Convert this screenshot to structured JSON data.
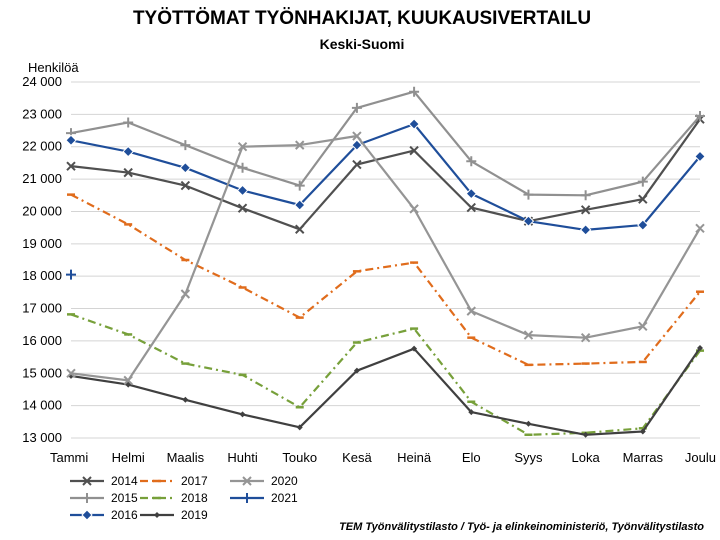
{
  "chart_data": {
    "type": "line",
    "title": "TYÖTTÖMAT TYÖNHAKIJAT, KUUKAUSIVERTAILU",
    "subtitle": "Keski-Suomi",
    "ylabel": "Henkilöä",
    "xlabel": "",
    "ylim": [
      13000,
      24000
    ],
    "yticks": [
      13000,
      14000,
      15000,
      16000,
      17000,
      18000,
      19000,
      20000,
      21000,
      22000,
      23000,
      24000
    ],
    "ytick_labels": [
      "13 000",
      "14 000",
      "15 000",
      "16 000",
      "17 000",
      "18 000",
      "19 000",
      "20 000",
      "21 000",
      "22 000",
      "23 000",
      "24 000"
    ],
    "categories": [
      "Tammi",
      "Helmi",
      "Maalis",
      "Huhti",
      "Touko",
      "Kesä",
      "Heinä",
      "Elo",
      "Syys",
      "Loka",
      "Marras",
      "Joulu"
    ],
    "grid": "horizontal",
    "legend_position": "bottom-left",
    "source": "TEM Työnvälitystilasto / Työ- ja elinkeinoministeriö, Työnvälitystilasto",
    "series": [
      {
        "name": "2014",
        "color": "#505050",
        "dash": "solid",
        "marker": "x",
        "values": [
          21400,
          21200,
          20800,
          20100,
          19450,
          21450,
          21880,
          20120,
          19700,
          20050,
          20380,
          22850
        ]
      },
      {
        "name": "2015",
        "color": "#909090",
        "dash": "solid",
        "marker": "plus",
        "values": [
          22420,
          22750,
          22050,
          21350,
          20800,
          23200,
          23700,
          21550,
          20520,
          20500,
          20920,
          22950
        ]
      },
      {
        "name": "2016",
        "color": "#1f4e9a",
        "dash": "solid",
        "marker": "diamond",
        "values": [
          22200,
          21850,
          21350,
          20650,
          20200,
          22050,
          22700,
          20550,
          19700,
          19430,
          19580,
          21700
        ]
      },
      {
        "name": "2017",
        "color": "#e06c1c",
        "dash": "dashdot",
        "marker": "dash",
        "values": [
          20520,
          19600,
          18500,
          17650,
          16720,
          18150,
          18420,
          16100,
          15260,
          15300,
          15350,
          17520
        ]
      },
      {
        "name": "2018",
        "color": "#77a03a",
        "dash": "dashdot",
        "marker": "dash",
        "values": [
          16820,
          16200,
          15300,
          14950,
          13950,
          15950,
          16380,
          14120,
          13100,
          13160,
          13300,
          15700
        ]
      },
      {
        "name": "2019",
        "color": "#404040",
        "dash": "solid",
        "marker": "dot",
        "values": [
          14920,
          14650,
          14180,
          13730,
          13330,
          15080,
          15760,
          13800,
          13440,
          13100,
          13200,
          15780
        ]
      },
      {
        "name": "2020",
        "color": "#959595",
        "dash": "solid",
        "marker": "x",
        "values": [
          15000,
          14780,
          17450,
          22000,
          22050,
          22330,
          20080,
          16920,
          16180,
          16100,
          16450,
          19480
        ]
      },
      {
        "name": "2021",
        "color": "#1f4e9a",
        "dash": "solid",
        "marker": "plus",
        "values": [
          18050,
          null,
          null,
          null,
          null,
          null,
          null,
          null,
          null,
          null,
          null,
          null
        ]
      }
    ]
  }
}
